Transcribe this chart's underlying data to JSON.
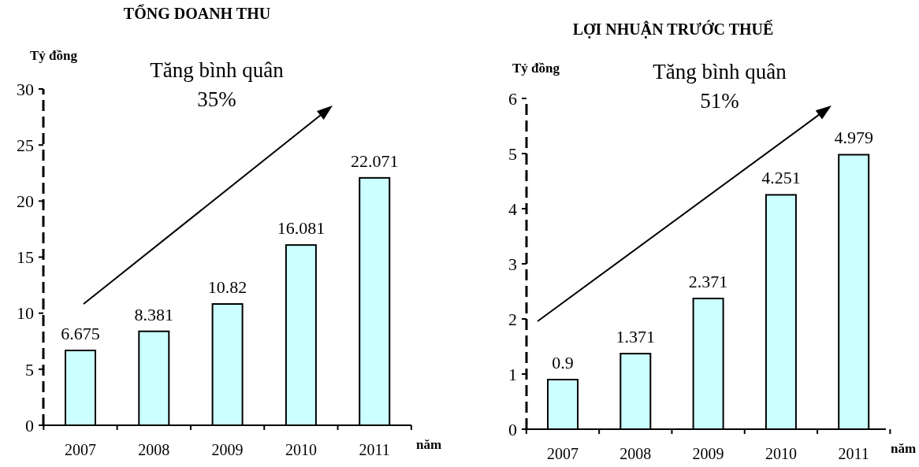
{
  "chart_data": [
    {
      "type": "bar",
      "title": "TỔNG DOANH THU",
      "ylabel": "Tỷ đồng",
      "xlabel": "năm",
      "annotations": [
        "Tăng bình quân",
        "35%"
      ],
      "categories": [
        "2007",
        "2008",
        "2009",
        "2010",
        "2011"
      ],
      "values": [
        6.675,
        8.381,
        10.82,
        16.081,
        22.071
      ],
      "color": "#ccffff",
      "ylim": [
        0,
        30
      ],
      "yticks": [
        0,
        5,
        10,
        15,
        20,
        25,
        30
      ],
      "data_labels": true,
      "grid": false
    },
    {
      "type": "bar",
      "title": "LỢI NHUẬN TRƯỚC THUẾ",
      "ylabel": "Tỷ đồng",
      "xlabel": "năm",
      "annotations": [
        "Tăng bình quân",
        "51%"
      ],
      "categories": [
        "2007",
        "2008",
        "2009",
        "2010",
        "2011"
      ],
      "values": [
        0.9,
        1.371,
        2.371,
        4.251,
        4.979
      ],
      "color": "#ccffff",
      "ylim": [
        0,
        6
      ],
      "yticks": [
        0,
        1,
        2,
        3,
        4,
        5,
        6
      ],
      "data_labels": true,
      "grid": false
    }
  ]
}
